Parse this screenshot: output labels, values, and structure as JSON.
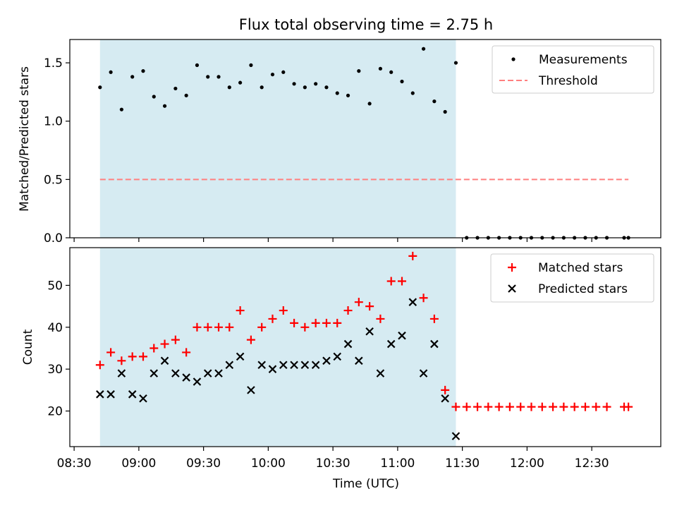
{
  "title": "Flux total observing time = 2.75 h",
  "colors": {
    "shade": "#add8e6",
    "measurement": "#000000",
    "threshold": "#ff7f7f",
    "matched": "#ff0000",
    "predicted": "#000000"
  },
  "chart_data": [
    {
      "type": "scatter",
      "name": "ratio-panel",
      "ylabel": "Matched/Predicted stars",
      "ylim": [
        0.0,
        1.7
      ],
      "yticks": [
        0.0,
        0.5,
        1.0,
        1.5
      ],
      "ytick_labels": [
        "0.0",
        "0.5",
        "1.0",
        "1.5"
      ],
      "x_unit": "minutes after 08:30 UTC",
      "xlim": [
        -2,
        272
      ],
      "xticks": [
        0,
        30,
        60,
        90,
        120,
        150,
        180,
        210,
        240
      ],
      "shaded_interval": [
        12,
        177
      ],
      "legend": {
        "position": "top-right",
        "entries": [
          "Measurements",
          "Threshold"
        ]
      },
      "threshold": {
        "name": "Threshold",
        "value": 0.5,
        "x_range": [
          12,
          257
        ]
      },
      "series": [
        {
          "name": "Measurements",
          "marker": "dot",
          "x": [
            12,
            17,
            22,
            27,
            32,
            37,
            42,
            47,
            52,
            57,
            62,
            67,
            72,
            77,
            82,
            87,
            92,
            97,
            102,
            107,
            112,
            117,
            122,
            127,
            132,
            137,
            142,
            147,
            152,
            157,
            162,
            167,
            172,
            177,
            182,
            187,
            192,
            197,
            202,
            207,
            212,
            217,
            222,
            227,
            232,
            237,
            242,
            247,
            255,
            257
          ],
          "y": [
            1.29,
            1.42,
            1.1,
            1.38,
            1.43,
            1.21,
            1.13,
            1.28,
            1.22,
            1.48,
            1.38,
            1.38,
            1.29,
            1.33,
            1.48,
            1.29,
            1.4,
            1.42,
            1.32,
            1.29,
            1.32,
            1.29,
            1.24,
            1.22,
            1.43,
            1.15,
            1.45,
            1.42,
            1.34,
            1.24,
            1.62,
            1.17,
            1.08,
            1.5,
            0,
            0,
            0,
            0,
            0,
            0,
            0,
            0,
            0,
            0,
            0,
            0,
            0,
            0,
            0,
            0
          ]
        }
      ]
    },
    {
      "type": "scatter",
      "name": "count-panel",
      "xlabel": "Time (UTC)",
      "ylabel": "Count",
      "ylim": [
        11.5,
        59
      ],
      "yticks": [
        20,
        30,
        40,
        50
      ],
      "ytick_labels": [
        "20",
        "30",
        "40",
        "50"
      ],
      "x_unit": "minutes after 08:30 UTC",
      "xlim": [
        -2,
        272
      ],
      "xticks": [
        0,
        30,
        60,
        90,
        120,
        150,
        180,
        210,
        240
      ],
      "xtick_labels": [
        "08:30",
        "09:00",
        "09:30",
        "10:00",
        "10:30",
        "11:00",
        "11:30",
        "12:00",
        "12:30"
      ],
      "shaded_interval": [
        12,
        177
      ],
      "legend": {
        "position": "top-right",
        "entries": [
          "Matched stars",
          "Predicted stars"
        ]
      },
      "series": [
        {
          "name": "Matched stars",
          "marker": "plus",
          "x": [
            12,
            17,
            22,
            27,
            32,
            37,
            42,
            47,
            52,
            57,
            62,
            67,
            72,
            77,
            82,
            87,
            92,
            97,
            102,
            107,
            112,
            117,
            122,
            127,
            132,
            137,
            142,
            147,
            152,
            157,
            162,
            167,
            172,
            177,
            182,
            187,
            192,
            197,
            202,
            207,
            212,
            217,
            222,
            227,
            232,
            237,
            242,
            247,
            255,
            257
          ],
          "y": [
            31,
            34,
            32,
            33,
            33,
            35,
            36,
            37,
            34,
            40,
            40,
            40,
            40,
            44,
            37,
            40,
            42,
            44,
            41,
            40,
            41,
            41,
            41,
            44,
            46,
            45,
            42,
            51,
            51,
            57,
            47,
            42,
            25,
            21,
            21,
            21,
            21,
            21,
            21,
            21,
            21,
            21,
            21,
            21,
            21,
            21,
            21,
            21,
            21,
            21
          ]
        },
        {
          "name": "Predicted stars",
          "marker": "x",
          "x": [
            12,
            17,
            22,
            27,
            32,
            37,
            42,
            47,
            52,
            57,
            62,
            67,
            72,
            77,
            82,
            87,
            92,
            97,
            102,
            107,
            112,
            117,
            122,
            127,
            132,
            137,
            142,
            147,
            152,
            157,
            162,
            167,
            172,
            177
          ],
          "y": [
            24,
            24,
            29,
            24,
            23,
            29,
            32,
            29,
            28,
            27,
            29,
            29,
            31,
            33,
            25,
            31,
            30,
            31,
            31,
            31,
            31,
            32,
            33,
            36,
            32,
            39,
            29,
            36,
            38,
            46,
            29,
            36,
            23,
            14
          ]
        }
      ]
    }
  ]
}
